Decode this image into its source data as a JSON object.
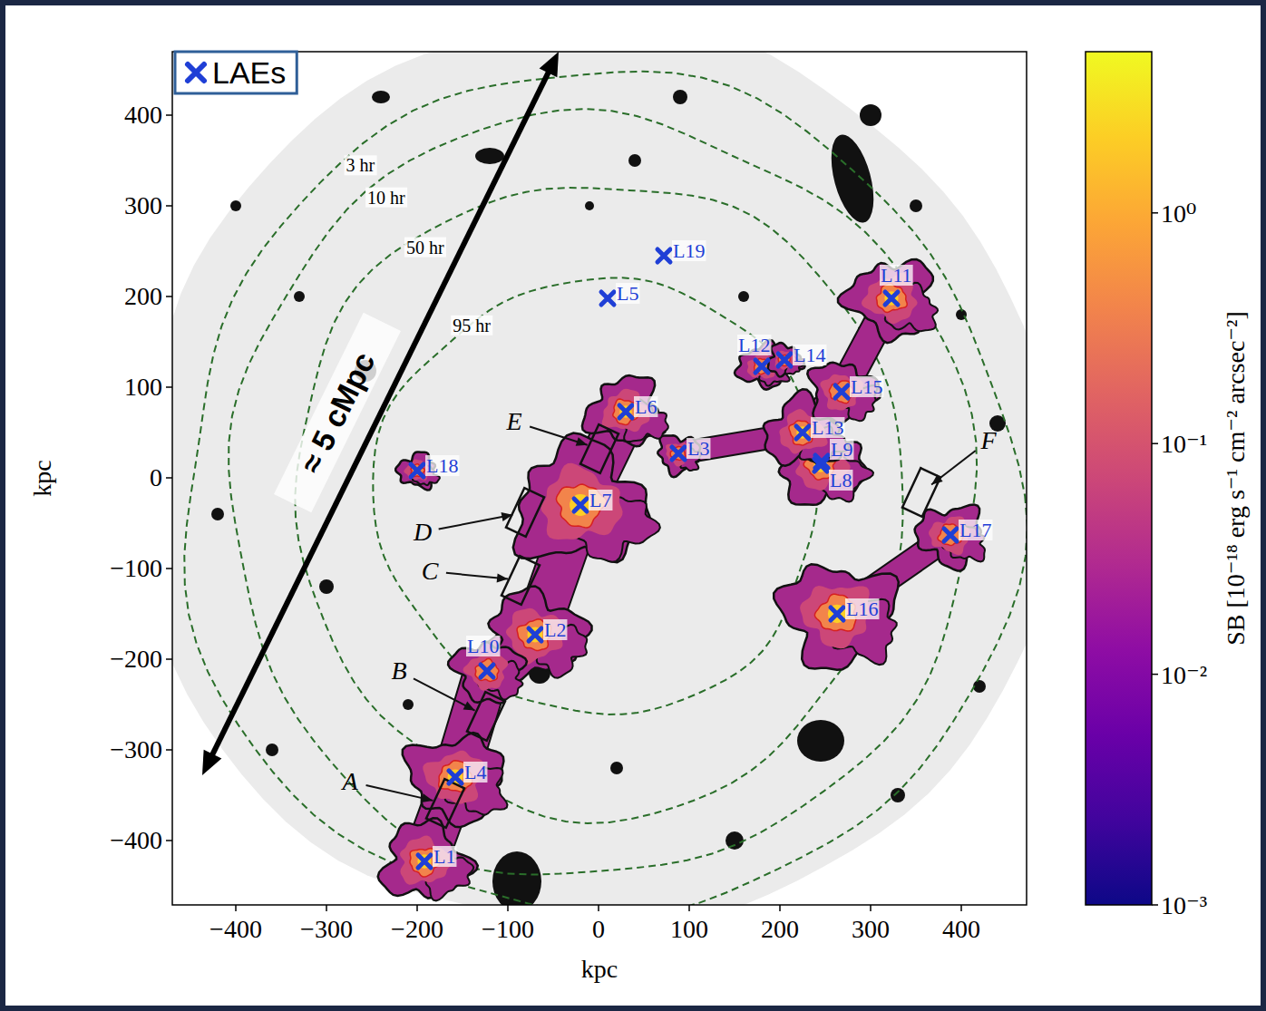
{
  "chart_data": {
    "type": "scatter",
    "x_label": "kpc",
    "y_label": "kpc",
    "xlim": [
      -470,
      472
    ],
    "ylim": [
      -471,
      470
    ],
    "xticks": [
      {
        "value": -400,
        "label": "−400"
      },
      {
        "value": -300,
        "label": "−300"
      },
      {
        "value": -200,
        "label": "−200"
      },
      {
        "value": -100,
        "label": "−100"
      },
      0,
      100,
      200,
      300,
      400
    ],
    "yticks": [
      {
        "value": -400,
        "label": "−400"
      },
      {
        "value": -300,
        "label": "−300"
      },
      {
        "value": -200,
        "label": "−200"
      },
      {
        "value": -100,
        "label": "−100"
      },
      0,
      100,
      200,
      300,
      400
    ],
    "legend": "upper left",
    "series": [
      {
        "name": "LAEs",
        "color": "#1f3fd6",
        "marker": "x",
        "labels": [
          "L1",
          "L2",
          "L3",
          "L4",
          "L5",
          "L6",
          "L7",
          "L8",
          "L9",
          "L10",
          "L11",
          "L12",
          "L13",
          "L14",
          "L15",
          "L16",
          "L17",
          "L18",
          "L19"
        ],
        "x": [
          -192,
          -70,
          88,
          -158,
          10,
          30,
          -20,
          245,
          246,
          -123,
          323,
          180,
          225,
          205,
          268,
          263,
          388,
          -200,
          72
        ],
        "y": [
          -423,
          -173,
          27,
          -330,
          198,
          73,
          -30,
          14,
          18,
          -213,
          198,
          123,
          50,
          130,
          95,
          -150,
          -63,
          8,
          245
        ]
      }
    ],
    "exposure_contours": [
      "3 hr",
      "10 hr",
      "50 hr",
      "95 hr"
    ],
    "regions": [
      {
        "label": "A",
        "x": -169,
        "y": -359
      },
      {
        "label": "B",
        "x": -124,
        "y": -263
      },
      {
        "label": "C",
        "x": -86,
        "y": -113
      },
      {
        "label": "D",
        "x": -81,
        "y": -38
      },
      {
        "label": "E",
        "x": 1,
        "y": 32
      },
      {
        "label": "F",
        "x": 356,
        "y": -16
      }
    ],
    "annotations": [
      "≈ 5 cMpc"
    ],
    "colorbar": {
      "label": "SB [10⁻¹⁸ erg s⁻¹ cm⁻² arcsec⁻²]",
      "lim": [
        0.001,
        5
      ],
      "log": true,
      "ticks": [
        {
          "value": 0.001,
          "label": "10⁻³"
        },
        {
          "value": 0.01,
          "label": "10⁻²"
        },
        {
          "value": 0.1,
          "label": "10⁻¹"
        },
        {
          "value": 1,
          "label": "10⁰"
        }
      ]
    }
  }
}
